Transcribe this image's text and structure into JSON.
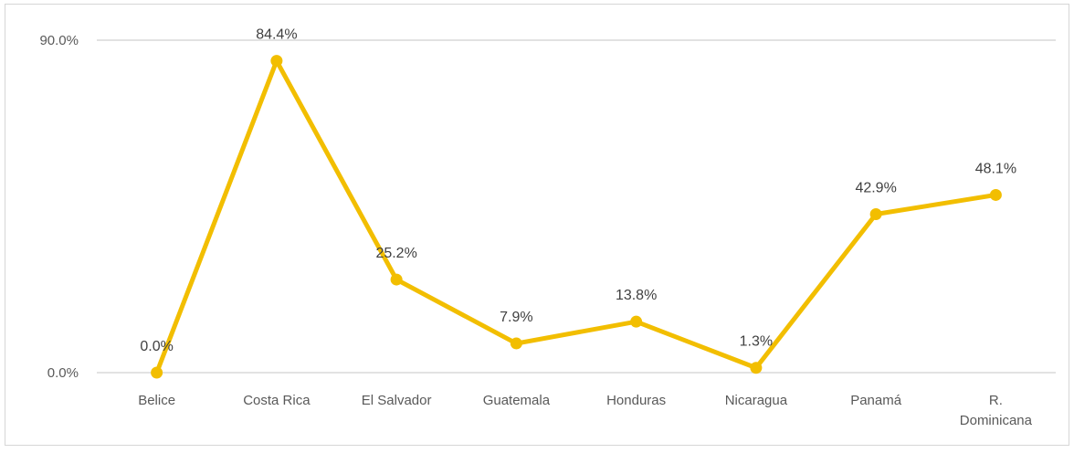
{
  "chart_data": {
    "type": "line",
    "categories": [
      "Belice",
      "Costa Rica",
      "El Salvador",
      "Guatemala",
      "Honduras",
      "Nicaragua",
      "Panamá",
      "R. Dominicana"
    ],
    "category_lines": [
      [
        "Belice"
      ],
      [
        "Costa Rica"
      ],
      [
        "El Salvador"
      ],
      [
        "Guatemala"
      ],
      [
        "Honduras"
      ],
      [
        "Nicaragua"
      ],
      [
        "Panamá"
      ],
      [
        "R.",
        "Dominicana"
      ]
    ],
    "series": [
      {
        "values": [
          0.0,
          84.4,
          25.2,
          7.9,
          13.8,
          1.3,
          42.9,
          48.1
        ],
        "labels": [
          "0.0%",
          "84.4%",
          "25.2%",
          "7.9%",
          "13.8%",
          "1.3%",
          "42.9%",
          "48.1%"
        ],
        "color": "#f2be00"
      }
    ],
    "ylim": [
      0,
      90
    ],
    "yticks": [
      {
        "value": 0,
        "label": "0.0%"
      },
      {
        "value": 90,
        "label": "90.0%"
      }
    ],
    "grid": true,
    "gridColor": "#d9d9d9",
    "title": "",
    "xlabel": "",
    "ylabel": ""
  }
}
